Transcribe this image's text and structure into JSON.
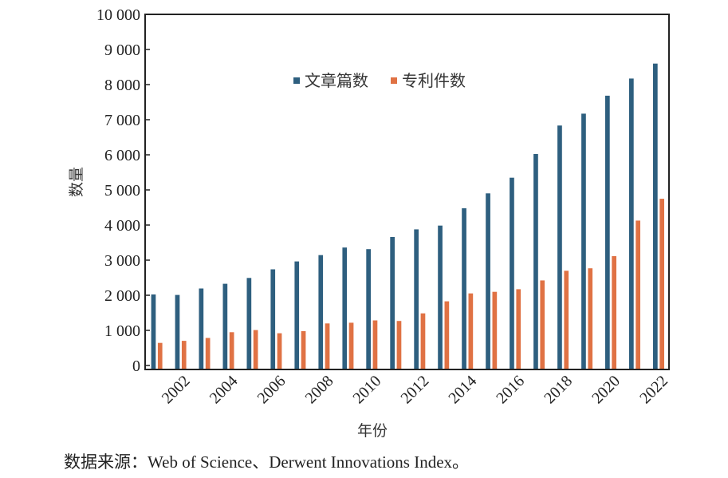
{
  "chart_data": {
    "type": "bar",
    "title": "",
    "xlabel": "年份",
    "ylabel": "数量",
    "categories": [
      "2001",
      "2002",
      "2003",
      "2004",
      "2005",
      "2006",
      "2007",
      "2008",
      "2009",
      "2010",
      "2011",
      "2012",
      "2013",
      "2014",
      "2015",
      "2016",
      "2017",
      "2018",
      "2019",
      "2020",
      "2021",
      "2022"
    ],
    "x_tick_labels": [
      "2002",
      "2004",
      "2006",
      "2008",
      "2010",
      "2012",
      "2014",
      "2016",
      "2018",
      "2020",
      "2022"
    ],
    "series": [
      {
        "name": "文章篇数",
        "color": "#2e5f7f",
        "values": [
          2030,
          2015,
          2200,
          2335,
          2500,
          2745,
          2970,
          3150,
          3365,
          3320,
          3665,
          3885,
          3990,
          4485,
          4910,
          5355,
          6030,
          6840,
          7180,
          7690,
          8180,
          8605
        ]
      },
      {
        "name": "专利件数",
        "color": "#e07244",
        "values": [
          650,
          710,
          790,
          955,
          1015,
          925,
          985,
          1205,
          1225,
          1290,
          1275,
          1490,
          1835,
          2060,
          2105,
          2180,
          2430,
          2705,
          2775,
          3120,
          4135,
          4755
        ]
      }
    ],
    "ylim": [
      0,
      10000
    ],
    "y_ticks": [
      0,
      1000,
      2000,
      3000,
      4000,
      5000,
      6000,
      7000,
      8000,
      9000,
      10000
    ],
    "y_tick_labels": [
      "0",
      "1 000",
      "2 000",
      "3 000",
      "4 000",
      "5 000",
      "6 000",
      "7 000",
      "8 000",
      "9 000",
      "10 000"
    ],
    "grid": false,
    "legend": {
      "position": "top-center",
      "orientation": "horizontal"
    }
  },
  "source_note": "数据来源：Web of Science、Derwent Innovations Index。"
}
